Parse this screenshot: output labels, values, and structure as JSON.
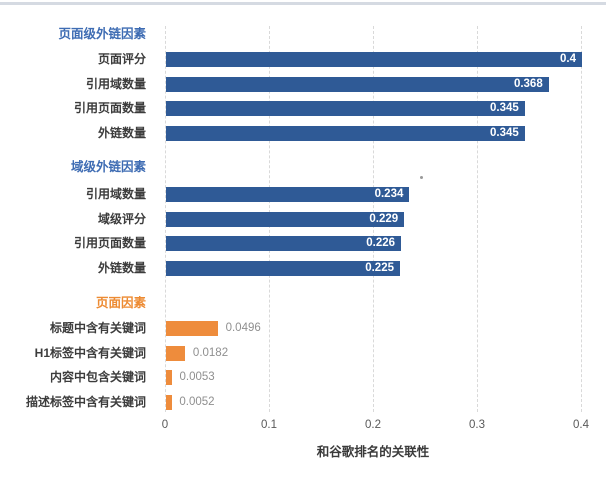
{
  "page": {
    "background": "#ffffff",
    "top_line_color": "#d5dae2"
  },
  "colors": {
    "blue_bar": "#2f5a96",
    "blue_header": "#3e6cb3",
    "orange_bar": "#ee8c3c",
    "orange_header": "#ed8b33",
    "row_label": "#3c3c3c",
    "outside_value": "#8f8f8f",
    "tick_label": "#595959",
    "gridline": "#d9d9d9"
  },
  "chart_data": {
    "type": "bar",
    "orientation": "horizontal",
    "xlabel": "和谷歌排名的关联性",
    "xlim": [
      0,
      0.4
    ],
    "x_ticks": [
      "0",
      "0.1",
      "0.2",
      "0.3",
      "0.4"
    ],
    "x_tick_values": [
      0,
      0.1,
      0.2,
      0.3,
      0.4
    ],
    "grid": "vertical-dashed",
    "legend": "none",
    "groups": [
      {
        "title": "页面级外链因素",
        "title_color": "#3e6cb3",
        "bar_color": "#2f5a96",
        "value_label": "inside-white",
        "items": [
          {
            "label": "页面评分",
            "value": 0.4,
            "display": "0.4"
          },
          {
            "label": "引用域数量",
            "value": 0.368,
            "display": "0.368"
          },
          {
            "label": "引用页面数量",
            "value": 0.345,
            "display": "0.345"
          },
          {
            "label": "外链数量",
            "value": 0.345,
            "display": "0.345"
          }
        ]
      },
      {
        "title": "域级外链因素",
        "title_color": "#3e6cb3",
        "bar_color": "#2f5a96",
        "value_label": "inside-white",
        "items": [
          {
            "label": "引用域数量",
            "value": 0.234,
            "display": "0.234"
          },
          {
            "label": "域级评分",
            "value": 0.229,
            "display": "0.229"
          },
          {
            "label": "引用页面数量",
            "value": 0.226,
            "display": "0.226"
          },
          {
            "label": "外链数量",
            "value": 0.225,
            "display": "0.225"
          }
        ]
      },
      {
        "title": "页面因素",
        "title_color": "#ed8b33",
        "bar_color": "#ee8c3c",
        "value_label": "outside-gray",
        "items": [
          {
            "label": "标题中含有关键词",
            "value": 0.0496,
            "display": "0.0496"
          },
          {
            "label": "H1标签中含有关键词",
            "value": 0.0182,
            "display": "0.0182"
          },
          {
            "label": "内容中包含关键词",
            "value": 0.0053,
            "display": "0.0053"
          },
          {
            "label": "描述标签中含有关键词",
            "value": 0.0052,
            "display": "0.0052"
          }
        ]
      }
    ]
  }
}
